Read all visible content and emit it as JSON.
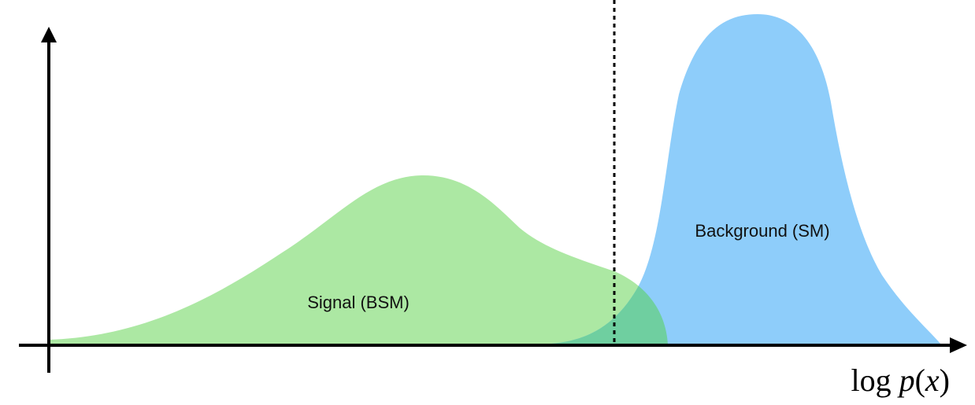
{
  "diagram": {
    "signal_label": "Signal (BSM)",
    "background_label": "Background (SM)",
    "x_axis_label": {
      "prefix": "log ",
      "func": "p",
      "open": "(",
      "var": "x",
      "close": ")"
    },
    "colors": {
      "signal_fill": "#9ee493",
      "background_fill": "#82c8fa",
      "overlap_fill": "#6fcfa0",
      "axis": "#000000",
      "threshold_line": "#000000"
    }
  }
}
